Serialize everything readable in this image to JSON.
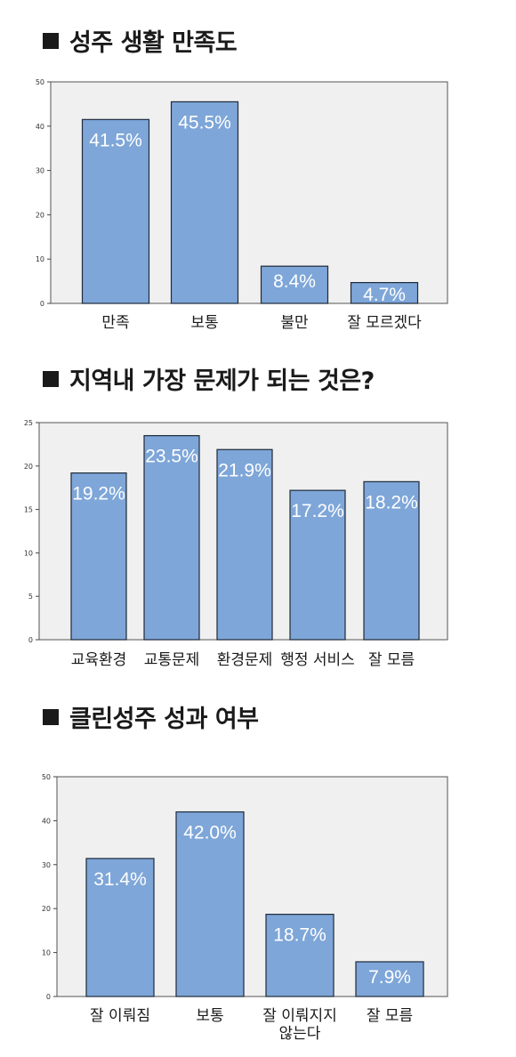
{
  "titles": [
    "성주 생활 만족도",
    "지역내 가장 문제가 되는 것은?",
    "클린성주 성과 여부"
  ],
  "colors": {
    "bar": "#7ea6d8",
    "bar_stroke": "#1f2a3a",
    "plot_bg": "#f0f0f0"
  },
  "chart_data": [
    {
      "type": "bar",
      "title": "성주 생활 만족도",
      "categories": [
        "만족",
        "보통",
        "불만",
        "잘 모르겠다"
      ],
      "values": [
        41.5,
        45.5,
        8.4,
        4.7
      ],
      "data_labels": [
        "41.5%",
        "45.5%",
        "8.4%",
        "4.7%"
      ],
      "ylim": [
        0,
        50
      ],
      "yticks": [
        0,
        10,
        20,
        30,
        40,
        50
      ],
      "xlabel": "",
      "ylabel": ""
    },
    {
      "type": "bar",
      "title": "지역내 가장 문제가 되는 것은?",
      "categories": [
        "교육환경",
        "교통문제",
        "환경문제",
        "행정 서비스",
        "잘 모름"
      ],
      "values": [
        19.2,
        23.5,
        21.9,
        17.2,
        18.2
      ],
      "data_labels": [
        "19.2%",
        "23.5%",
        "21.9%",
        "17.2%",
        "18.2%"
      ],
      "ylim": [
        0,
        25
      ],
      "yticks": [
        0,
        5,
        10,
        15,
        20,
        25
      ],
      "xlabel": "",
      "ylabel": ""
    },
    {
      "type": "bar",
      "title": "클린성주 성과 여부",
      "categories": [
        "잘 이뤄짐",
        "보통",
        "잘 이뤄지지\n않는다",
        "잘 모름"
      ],
      "values": [
        31.4,
        42.0,
        18.7,
        7.9
      ],
      "data_labels": [
        "31.4%",
        "42.0%",
        "18.7%",
        "7.9%"
      ],
      "ylim": [
        0,
        50
      ],
      "yticks": [
        0,
        10,
        20,
        30,
        40,
        50
      ],
      "xlabel": "",
      "ylabel": ""
    }
  ]
}
